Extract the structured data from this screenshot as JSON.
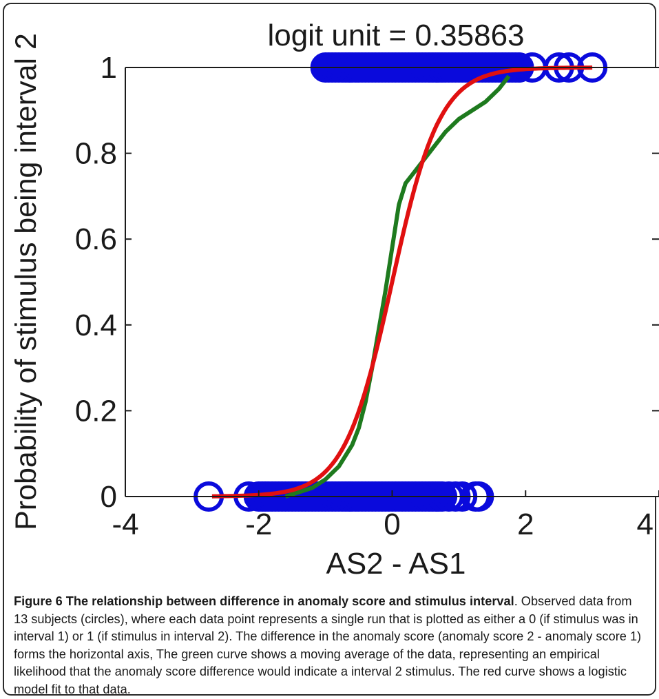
{
  "chart_data": {
    "type": "scatter",
    "title": "logit unit = 0.35863",
    "xlabel": "AS2 - AS1",
    "ylabel": "Probability of stimulus being interval 2",
    "xlim": [
      -4,
      4
    ],
    "ylim": [
      0,
      1
    ],
    "xticks": [
      -4,
      -2,
      0,
      2,
      4
    ],
    "yticks": [
      0,
      0.2,
      0.4,
      0.6,
      0.8,
      1
    ],
    "xtick_labels": [
      "-4",
      "-2",
      "0",
      "2",
      "4"
    ],
    "ytick_labels": [
      "0",
      "0.2",
      "0.4",
      "0.6",
      "0.8",
      "1"
    ],
    "grid": false,
    "series": [
      {
        "kind": "points",
        "color": "#0a0adc",
        "marker": "open-circle",
        "y1_x": [
          -1.0,
          -0.95,
          -0.9,
          -0.85,
          -0.8,
          -0.75,
          -0.7,
          -0.65,
          -0.6,
          -0.55,
          -0.5,
          -0.45,
          -0.4,
          -0.35,
          -0.3,
          -0.25,
          -0.2,
          -0.15,
          -0.1,
          -0.05,
          0.0,
          0.05,
          0.1,
          0.15,
          0.2,
          0.25,
          0.3,
          0.35,
          0.4,
          0.45,
          0.5,
          0.55,
          0.6,
          0.65,
          0.7,
          0.75,
          0.8,
          0.85,
          0.9,
          0.95,
          1.0,
          1.05,
          1.1,
          1.15,
          1.2,
          1.25,
          1.3,
          1.35,
          1.4,
          1.45,
          1.5,
          1.55,
          1.6,
          1.65,
          1.7,
          1.75,
          1.8,
          1.85,
          1.9,
          2.1,
          2.5,
          2.65,
          3.0
        ],
        "y0_x": [
          -2.75,
          -2.15,
          -2.0,
          -1.95,
          -1.9,
          -1.85,
          -1.8,
          -1.75,
          -1.7,
          -1.65,
          -1.6,
          -1.55,
          -1.5,
          -1.45,
          -1.4,
          -1.35,
          -1.3,
          -1.25,
          -1.2,
          -1.15,
          -1.1,
          -1.05,
          -1.0,
          -0.95,
          -0.9,
          -0.85,
          -0.8,
          -0.75,
          -0.7,
          -0.65,
          -0.6,
          -0.55,
          -0.5,
          -0.45,
          -0.4,
          -0.35,
          -0.3,
          -0.25,
          -0.2,
          -0.15,
          -0.1,
          -0.05,
          0.0,
          0.05,
          0.1,
          0.15,
          0.2,
          0.25,
          0.3,
          0.35,
          0.4,
          0.45,
          0.5,
          0.55,
          0.6,
          0.65,
          0.7,
          0.75,
          0.85,
          0.95,
          1.05,
          1.25,
          1.3
        ]
      },
      {
        "kind": "line",
        "color": "#1e7a1e",
        "x": [
          -1.6,
          -1.4,
          -1.2,
          -1.0,
          -0.8,
          -0.6,
          -0.5,
          -0.4,
          -0.3,
          -0.2,
          -0.1,
          0.0,
          0.1,
          0.2,
          0.3,
          0.4,
          0.6,
          0.8,
          1.0,
          1.2,
          1.4,
          1.6,
          1.75
        ],
        "y": [
          0.0,
          0.01,
          0.02,
          0.04,
          0.07,
          0.12,
          0.16,
          0.22,
          0.3,
          0.39,
          0.48,
          0.58,
          0.68,
          0.73,
          0.75,
          0.77,
          0.81,
          0.85,
          0.88,
          0.9,
          0.92,
          0.95,
          0.98
        ]
      },
      {
        "kind": "logistic",
        "color": "#e01010",
        "x_start": -2.7,
        "x_end": 3.0,
        "midpoint": 0.0,
        "scale": 0.35863
      }
    ]
  },
  "caption": {
    "figure_label": "Figure 6 The relationship between difference in anomaly score and stimulus interval",
    "text": ". Observed data from 13 subjects (circles), where each data point represents a single run that is plotted as either a 0 (if stimulus was in interval 1) or 1 (if stimulus in interval 2). The difference in the anomaly score (anomaly score 2 - anomaly score 1) forms the horizontal axis, The green curve shows a moving average of the data, representing an empirical likelihood that the anomaly score difference would indicate a interval 2 stimulus. The red curve shows a logistic model fit to that data."
  }
}
